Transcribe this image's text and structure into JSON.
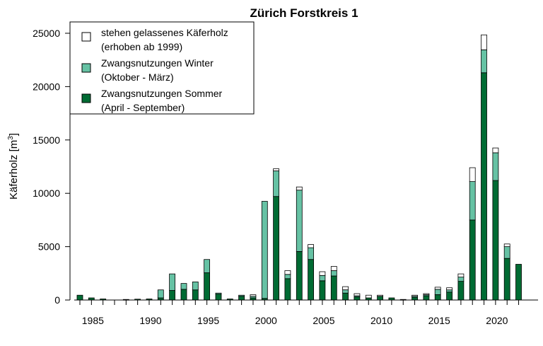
{
  "chart_data": {
    "type": "bar",
    "stacked": true,
    "title": "Zürich Forstkreis 1",
    "ylabel": "Käferholz [m",
    "ylabel_sup": "3",
    "ylabel_close": "]",
    "xlabel": "",
    "ylim": [
      0,
      25000
    ],
    "yticks": [
      0,
      5000,
      10000,
      15000,
      20000,
      25000
    ],
    "xlim": [
      1984,
      2023
    ],
    "xticks": [
      1985,
      1990,
      1995,
      2000,
      2005,
      2010,
      2015,
      2020
    ],
    "grid": false,
    "legend_position": "top-left",
    "colors": {
      "sommer": "#006b33",
      "winter": "#66c2a4",
      "stehen": "#ffffff",
      "outline": "#000000"
    },
    "legend": [
      {
        "line1": "stehen gelassenes Käferholz",
        "line2": "(erhoben ab 1999)",
        "color": "#ffffff"
      },
      {
        "line1": "Zwangsnutzungen Winter",
        "line2": "(Oktober - März)",
        "color": "#66c2a4"
      },
      {
        "line1": "Zwangsnutzungen Sommer",
        "line2": "(April - September)",
        "color": "#006b33"
      }
    ],
    "years": [
      1984,
      1985,
      1986,
      1987,
      1988,
      1989,
      1990,
      1991,
      1992,
      1993,
      1994,
      1995,
      1996,
      1997,
      1998,
      1999,
      2000,
      2001,
      2002,
      2003,
      2004,
      2005,
      2006,
      2007,
      2008,
      2009,
      2010,
      2011,
      2012,
      2013,
      2014,
      2015,
      2016,
      2017,
      2018,
      2019,
      2020,
      2021,
      2022
    ],
    "series": [
      {
        "name": "Zwangsnutzungen Sommer (April - September)",
        "key": "sommer",
        "values": [
          450,
          200,
          100,
          0,
          50,
          80,
          100,
          200,
          900,
          1000,
          950,
          2550,
          550,
          100,
          350,
          200,
          150,
          9700,
          2000,
          4550,
          3800,
          1800,
          2250,
          650,
          300,
          200,
          350,
          200,
          50,
          250,
          400,
          500,
          750,
          1750,
          7500,
          21300,
          11200,
          3900,
          3350
        ]
      },
      {
        "name": "Zwangsnutzungen Winter (Oktober - März)",
        "key": "winter",
        "values": [
          0,
          0,
          0,
          0,
          0,
          0,
          0,
          750,
          1550,
          550,
          750,
          1250,
          100,
          0,
          100,
          150,
          9100,
          2400,
          400,
          5750,
          1100,
          500,
          500,
          300,
          100,
          0,
          0,
          0,
          0,
          100,
          100,
          500,
          200,
          400,
          3600,
          2150,
          2600,
          1100,
          0
        ]
      },
      {
        "name": "stehen gelassenes Käferholz (erhoben ab 1999)",
        "key": "stehen",
        "values": [
          0,
          0,
          0,
          0,
          0,
          0,
          0,
          0,
          0,
          0,
          0,
          0,
          0,
          0,
          0,
          150,
          0,
          200,
          350,
          300,
          300,
          350,
          400,
          300,
          200,
          250,
          100,
          0,
          0,
          100,
          100,
          200,
          200,
          300,
          1300,
          1400,
          450,
          250,
          0
        ]
      }
    ]
  }
}
